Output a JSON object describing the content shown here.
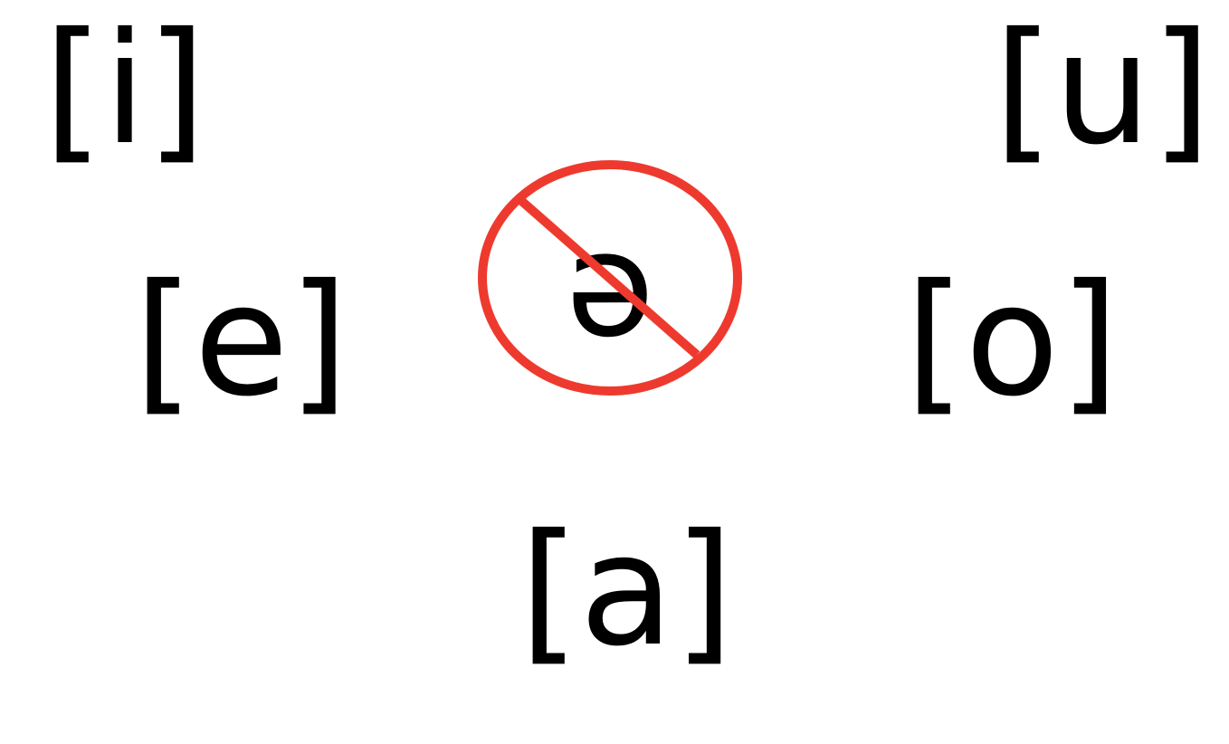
{
  "vowels": {
    "i": "[i]",
    "u": "[u]",
    "e": "[e]",
    "o": "[o]",
    "a": "[a]"
  },
  "prohibited": {
    "symbol": "ə",
    "sign_color": "#ee3a2e",
    "meaning": "prohibition-sign"
  }
}
